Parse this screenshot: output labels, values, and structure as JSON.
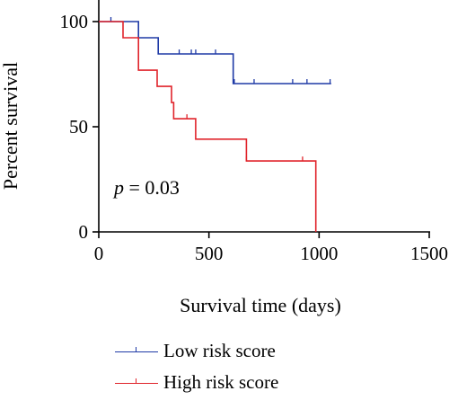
{
  "colors": {
    "low": "#1f3aa6",
    "high": "#e0242b",
    "axis": "#000000"
  },
  "chart_data": {
    "type": "line",
    "subtype": "kaplan-meier",
    "xlabel": "Survival time (days)",
    "ylabel": "Percent survival",
    "xlim": [
      0,
      1500
    ],
    "ylim": [
      0,
      100
    ],
    "xticks": [
      0,
      500,
      1000,
      1500
    ],
    "yticks": [
      0,
      50,
      100
    ],
    "annotation": {
      "p_symbol": "p",
      "p_rest": " = 0.03"
    },
    "series": [
      {
        "name": "Low risk score",
        "key": "low",
        "steps": [
          [
            0,
            100
          ],
          [
            180,
            100
          ],
          [
            180,
            92.3
          ],
          [
            270,
            92.3
          ],
          [
            270,
            84.6
          ],
          [
            610,
            84.6
          ],
          [
            610,
            70.5
          ],
          [
            1055,
            70.5
          ]
        ],
        "censored": [
          [
            55,
            100
          ],
          [
            365,
            84.6
          ],
          [
            420,
            84.6
          ],
          [
            440,
            84.6
          ],
          [
            530,
            84.6
          ],
          [
            615,
            70.5
          ],
          [
            705,
            70.5
          ],
          [
            880,
            70.5
          ],
          [
            945,
            70.5
          ],
          [
            1050,
            70.5
          ]
        ]
      },
      {
        "name": "High risk score",
        "key": "high",
        "steps": [
          [
            0,
            100
          ],
          [
            110,
            100
          ],
          [
            110,
            92.3
          ],
          [
            180,
            92.3
          ],
          [
            180,
            76.9
          ],
          [
            265,
            76.9
          ],
          [
            265,
            69.2
          ],
          [
            330,
            69.2
          ],
          [
            330,
            61.5
          ],
          [
            340,
            61.5
          ],
          [
            340,
            53.8
          ],
          [
            440,
            53.8
          ],
          [
            440,
            44.1
          ],
          [
            670,
            44.1
          ],
          [
            670,
            33.7
          ],
          [
            985,
            33.7
          ],
          [
            985,
            0
          ]
        ],
        "censored": [
          [
            400,
            53.8
          ],
          [
            670,
            33.7
          ],
          [
            925,
            33.7
          ]
        ]
      }
    ],
    "legend_position": "bottom-left"
  }
}
